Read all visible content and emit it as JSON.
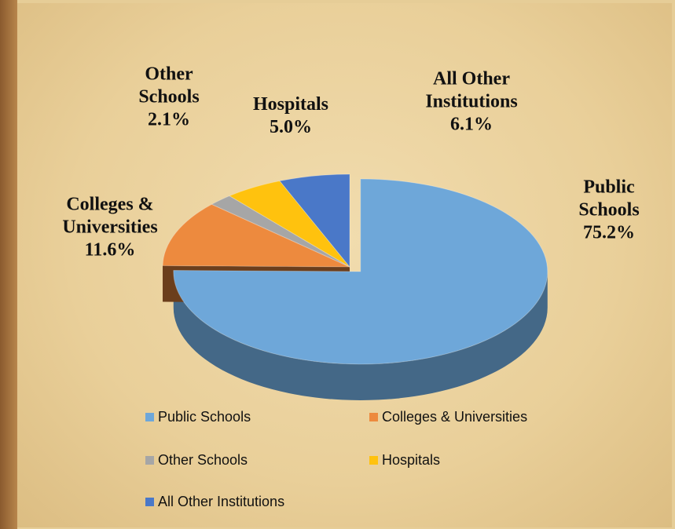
{
  "chart_data": {
    "type": "pie",
    "categories": [
      "Public Schools",
      "Colleges & Universities",
      "Other Schools",
      "Hospitals",
      "All Other Institutions"
    ],
    "values": [
      75.2,
      11.6,
      2.1,
      5.0,
      6.1
    ],
    "value_labels": [
      "75.2%",
      "11.6%",
      "2.1%",
      "5.0%",
      "6.1%"
    ],
    "colors": [
      "#6ea7d9",
      "#ed8a3e",
      "#a6a6a6",
      "#ffc20e",
      "#4a78c8"
    ],
    "legend": "bottom"
  }
}
